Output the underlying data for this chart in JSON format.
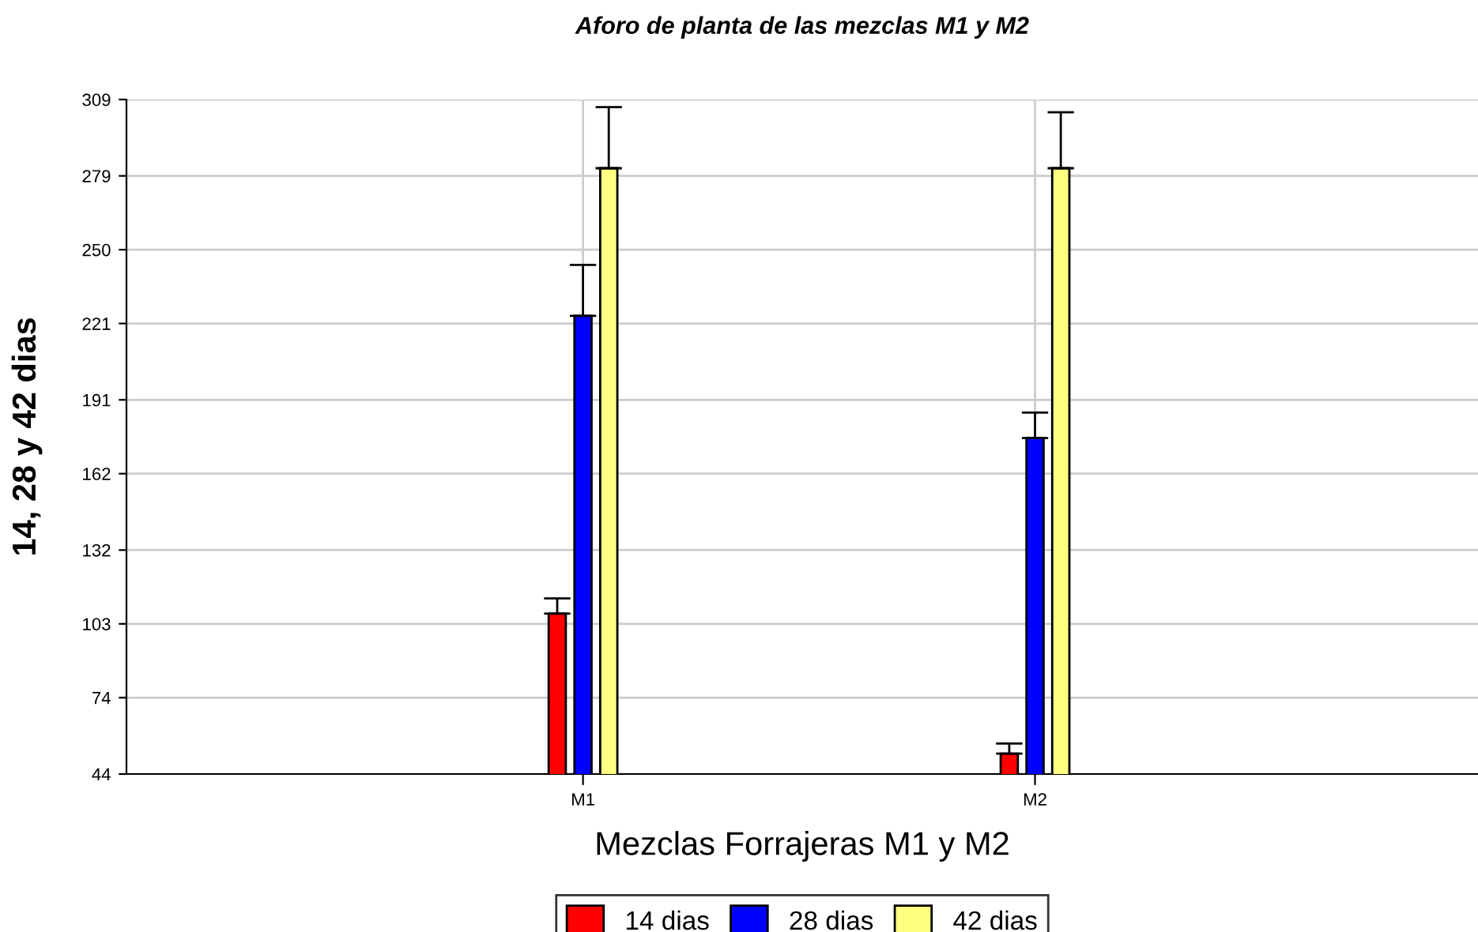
{
  "chart_data": {
    "type": "bar",
    "title": "Aforo de planta de las mezclas M1 y M2",
    "xlabel": "Mezclas Forrajeras M1 y M2",
    "ylabel": "14, 28 y 42 dias",
    "categories": [
      "M1",
      "M2"
    ],
    "series": [
      {
        "name": "14 dias",
        "color": "#ff0000",
        "values": [
          107,
          52
        ],
        "errors": [
          [
            107,
            113
          ],
          [
            52,
            56
          ]
        ]
      },
      {
        "name": "28 dias",
        "color": "#0000ff",
        "values": [
          224,
          176
        ],
        "errors": [
          [
            224,
            244
          ],
          [
            176,
            186
          ]
        ]
      },
      {
        "name": "42 dias",
        "color": "#ffff80",
        "values": [
          282,
          282
        ],
        "errors": [
          [
            282,
            306
          ],
          [
            282,
            304
          ]
        ]
      }
    ],
    "ylim": [
      44,
      309
    ],
    "yticks": [
      44,
      74,
      103,
      132,
      162,
      191,
      221,
      250,
      279,
      309
    ],
    "grid": true,
    "legend": "bottom"
  }
}
